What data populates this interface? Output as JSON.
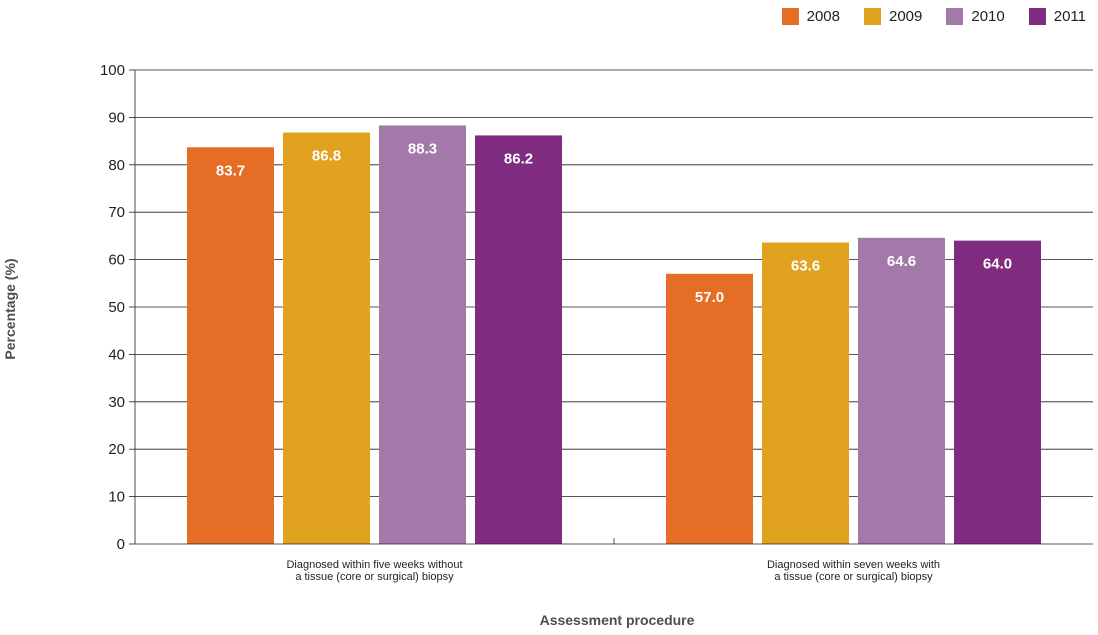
{
  "chart_data": {
    "type": "bar",
    "xlabel": "Assessment procedure",
    "ylabel": "Percentage (%)",
    "ylim": [
      0,
      100
    ],
    "yticks": [
      "0",
      "10",
      "20",
      "30",
      "40",
      "50",
      "60",
      "70",
      "80",
      "90",
      "100"
    ],
    "grid": true,
    "legend_position": "top-right",
    "categories": [
      [
        "Diagnosed within five weeks without",
        "a tissue (core or surgical) biopsy"
      ],
      [
        "Diagnosed within seven weeks with",
        "a tissue (core or surgical) biopsy"
      ]
    ],
    "series": [
      {
        "name": "2008",
        "color": "#e56d25",
        "values": [
          83.7,
          57.0
        ],
        "labels": [
          "83.7",
          "57.0"
        ]
      },
      {
        "name": "2009",
        "color": "#e1a21f",
        "values": [
          86.8,
          63.6
        ],
        "labels": [
          "86.8",
          "63.6"
        ]
      },
      {
        "name": "2010",
        "color": "#a279a9",
        "values": [
          88.3,
          64.6
        ],
        "labels": [
          "88.3",
          "64.6"
        ]
      },
      {
        "name": "2011",
        "color": "#7f2b7f",
        "values": [
          86.2,
          64.0
        ],
        "labels": [
          "86.2",
          "64.0"
        ]
      }
    ]
  }
}
